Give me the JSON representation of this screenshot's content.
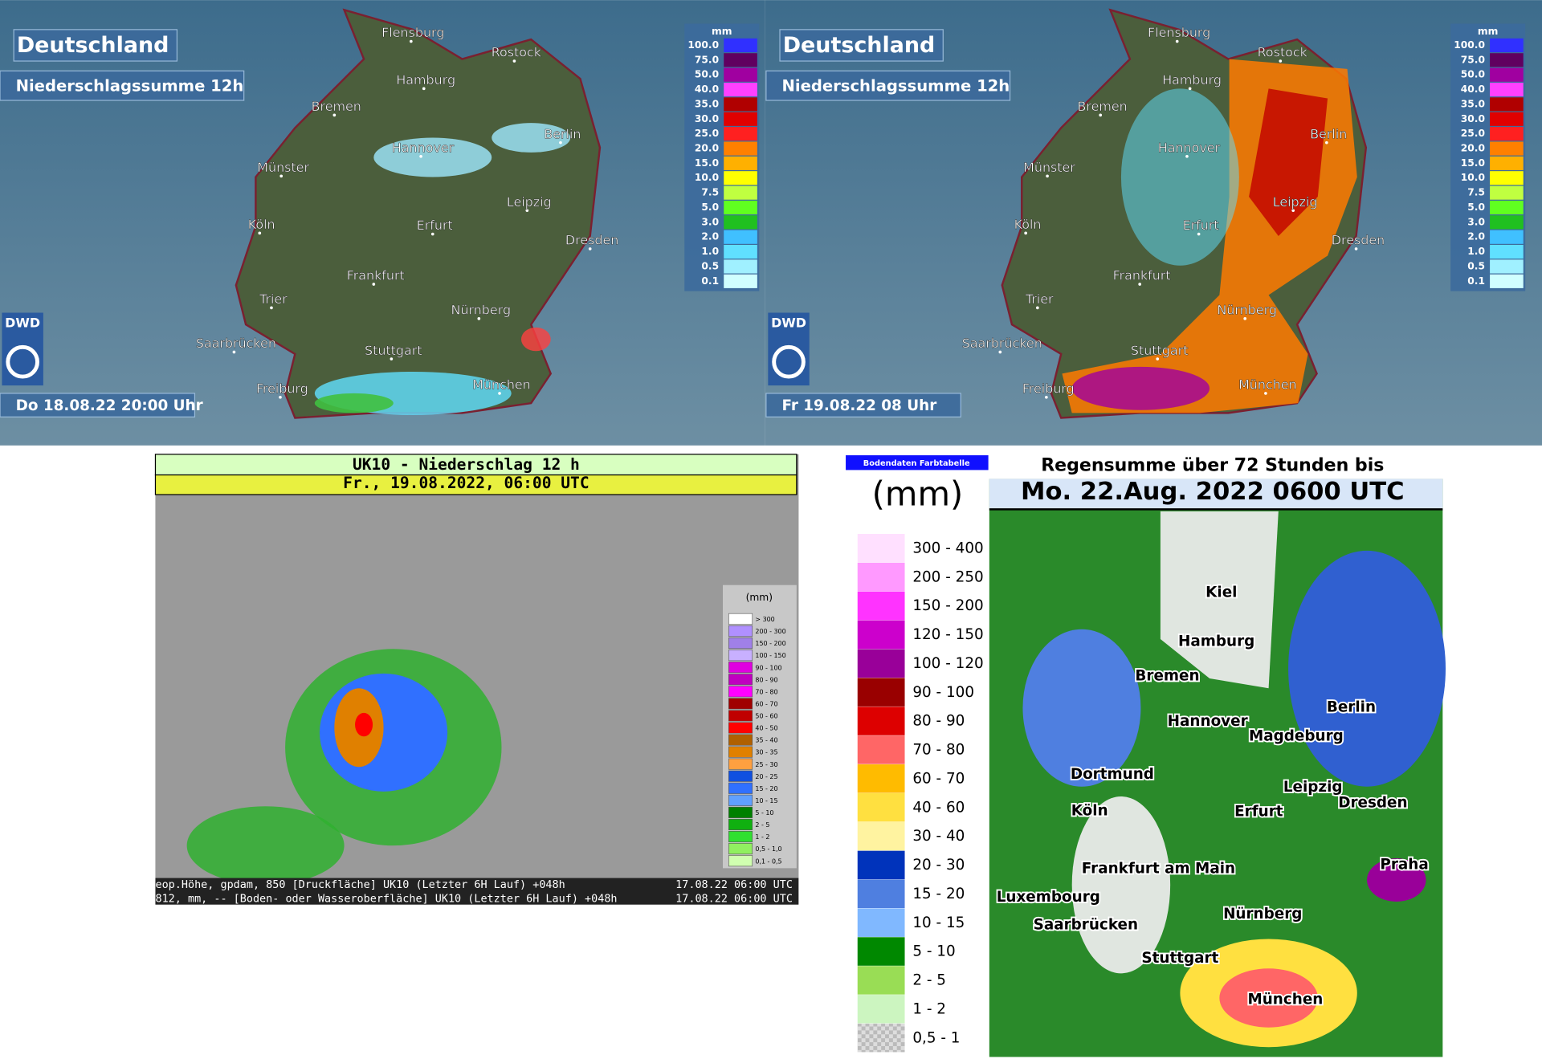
{
  "panels": [
    {
      "title": "Deutschland",
      "subtitle": "Niederschlagssumme 12h",
      "logo": "DWD",
      "timestamp": "Do 18.08.22 20:00 Uhr",
      "legend_unit": "mm",
      "legend": [
        {
          "label": "100.0",
          "color": "#3030ff"
        },
        {
          "label": "75.0",
          "color": "#600060"
        },
        {
          "label": "50.0",
          "color": "#a000a0"
        },
        {
          "label": "40.0",
          "color": "#ff40ff"
        },
        {
          "label": "35.0",
          "color": "#b00000"
        },
        {
          "label": "30.0",
          "color": "#e00000"
        },
        {
          "label": "25.0",
          "color": "#ff2020"
        },
        {
          "label": "20.0",
          "color": "#ff8000"
        },
        {
          "label": "15.0",
          "color": "#ffb000"
        },
        {
          "label": "10.0",
          "color": "#ffff00"
        },
        {
          "label": "7.5",
          "color": "#c0ff40"
        },
        {
          "label": "5.0",
          "color": "#60ff20"
        },
        {
          "label": "3.0",
          "color": "#20c020"
        },
        {
          "label": "2.0",
          "color": "#40c0ff"
        },
        {
          "label": "1.0",
          "color": "#60e0ff"
        },
        {
          "label": "0.5",
          "color": "#a0f0ff"
        },
        {
          "label": "0.1",
          "color": "#d0ffff"
        }
      ],
      "cities": [
        "Flensburg",
        "Rostock",
        "Hamburg",
        "Bremen",
        "Berlin",
        "Hannover",
        "Münster",
        "Leipzig",
        "Köln",
        "Erfurt",
        "Dresden",
        "Frankfurt",
        "Trier",
        "Nürnberg",
        "Saarbrücken",
        "Stuttgart",
        "München",
        "Freiburg"
      ]
    },
    {
      "title": "Deutschland",
      "subtitle": "Niederschlagssumme 12h",
      "logo": "DWD",
      "timestamp": "Fr 19.08.22 08 Uhr",
      "legend_unit": "mm",
      "legend": [
        {
          "label": "100.0",
          "color": "#3030ff"
        },
        {
          "label": "75.0",
          "color": "#600060"
        },
        {
          "label": "50.0",
          "color": "#a000a0"
        },
        {
          "label": "40.0",
          "color": "#ff40ff"
        },
        {
          "label": "35.0",
          "color": "#b00000"
        },
        {
          "label": "30.0",
          "color": "#e00000"
        },
        {
          "label": "25.0",
          "color": "#ff2020"
        },
        {
          "label": "20.0",
          "color": "#ff8000"
        },
        {
          "label": "15.0",
          "color": "#ffb000"
        },
        {
          "label": "10.0",
          "color": "#ffff00"
        },
        {
          "label": "7.5",
          "color": "#c0ff40"
        },
        {
          "label": "5.0",
          "color": "#60ff20"
        },
        {
          "label": "3.0",
          "color": "#20c020"
        },
        {
          "label": "2.0",
          "color": "#40c0ff"
        },
        {
          "label": "1.0",
          "color": "#60e0ff"
        },
        {
          "label": "0.5",
          "color": "#a0f0ff"
        },
        {
          "label": "0.1",
          "color": "#d0ffff"
        }
      ],
      "cities": [
        "Flensburg",
        "Rostock",
        "Hamburg",
        "Bremen",
        "Berlin",
        "Hannover",
        "Münster",
        "Leipzig",
        "Köln",
        "Erfurt",
        "Dresden",
        "Frankfurt",
        "Trier",
        "Nürnberg",
        "Saarbrücken",
        "Stuttgart",
        "München",
        "Freiburg"
      ]
    }
  ],
  "uk10": {
    "title": "UK10 - Niederschlag 12 h",
    "subtitle": "Fr., 19.08.2022, 06:00 UTC",
    "legend_unit": "(mm)",
    "legend": [
      {
        "label": "> 300",
        "color": "#ffffff"
      },
      {
        "label": "200 - 300",
        "color": "#b090ff"
      },
      {
        "label": "150 - 200",
        "color": "#a080e8"
      },
      {
        "label": "100 - 150",
        "color": "#c8b0ff"
      },
      {
        "label": "90 - 100",
        "color": "#e000e0"
      },
      {
        "label": "80 - 90",
        "color": "#c000c0"
      },
      {
        "label": "70 - 80",
        "color": "#ff00ff"
      },
      {
        "label": "60 - 70",
        "color": "#a00000"
      },
      {
        "label": "50 - 60",
        "color": "#c00000"
      },
      {
        "label": "40 - 50",
        "color": "#ff0000"
      },
      {
        "label": "35 - 40",
        "color": "#b06000"
      },
      {
        "label": "30 - 35",
        "color": "#e08000"
      },
      {
        "label": "25 - 30",
        "color": "#ffa040"
      },
      {
        "label": "20 - 25",
        "color": "#1050e0"
      },
      {
        "label": "15 - 20",
        "color": "#3070ff"
      },
      {
        "label": "10 - 15",
        "color": "#60a0ff"
      },
      {
        "label": "5 - 10",
        "color": "#008000"
      },
      {
        "label": "2 - 5",
        "color": "#10b010"
      },
      {
        "label": "1 - 2",
        "color": "#30e030"
      },
      {
        "label": "0,5 - 1,0",
        "color": "#90f060"
      },
      {
        "label": "0,1 - 0,5",
        "color": "#d0ffb0"
      }
    ],
    "footer": [
      {
        "text": "eop.Höhe, gpdam, 850 [Druckfläche] UK10 (Letzter  6H Lauf) +048h",
        "time": "17.08.22 06:00 UTC"
      },
      {
        "text": "812, mm, -- [Boden- oder Wasseroberfläche] UK10 (Letzter  6H Lauf) +048h",
        "time": "17.08.22 06:00 UTC"
      }
    ]
  },
  "dwd72": {
    "legend_header": "Bodendaten Farbtabelle",
    "legend_unit": "(mm)",
    "legend": [
      {
        "label": "300 - 400",
        "color": "#ffe0ff"
      },
      {
        "label": "200 - 250",
        "color": "#ff99ff"
      },
      {
        "label": "150 - 200",
        "color": "#ff33ff"
      },
      {
        "label": "120 - 150",
        "color": "#cc00cc"
      },
      {
        "label": "100 - 120",
        "color": "#990099"
      },
      {
        "label": "90 - 100",
        "color": "#990000"
      },
      {
        "label": "80 - 90",
        "color": "#dd0000"
      },
      {
        "label": "70 - 80",
        "color": "#ff6666"
      },
      {
        "label": "60 - 70",
        "color": "#ffbb00"
      },
      {
        "label": "40 - 60",
        "color": "#ffe040"
      },
      {
        "label": "30 - 40",
        "color": "#fff3a0"
      },
      {
        "label": "20 - 30",
        "color": "#0033bb"
      },
      {
        "label": "15 - 20",
        "color": "#4f7fe0"
      },
      {
        "label": "10 - 15",
        "color": "#80b8ff"
      },
      {
        "label": "5 - 10",
        "color": "#008800"
      },
      {
        "label": "2 - 5",
        "color": "#99dd55"
      },
      {
        "label": "1 - 2",
        "color": "#ccf5c0"
      },
      {
        "label": "0,5 - 1",
        "color": "#cccccc"
      }
    ],
    "title": "Regensumme über 72 Stunden bis",
    "subtitle": "Mo. 22.Aug. 2022 0600 UTC",
    "cities": [
      "Kiel",
      "Hamburg",
      "Bremen",
      "Berlin",
      "Hannover",
      "Magdeburg",
      "Dortmund",
      "Leipzig",
      "Dresden",
      "Köln",
      "Erfurt",
      "Praha",
      "Frankfurt am Main",
      "Luxembourg",
      "Nürnberg",
      "Saarbrücken",
      "Stuttgart",
      "München"
    ]
  }
}
